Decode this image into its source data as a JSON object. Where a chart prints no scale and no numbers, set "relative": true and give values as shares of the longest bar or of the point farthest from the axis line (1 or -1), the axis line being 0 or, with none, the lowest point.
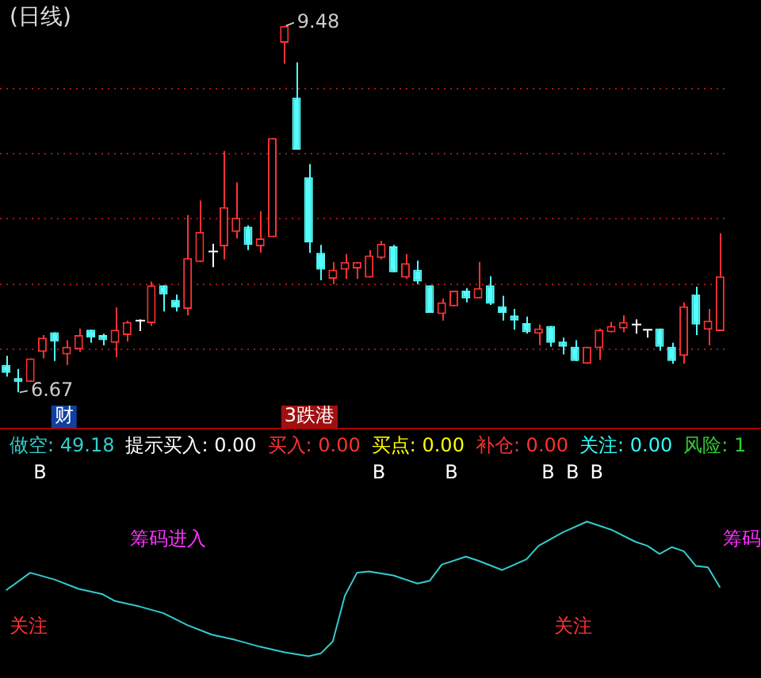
{
  "chart_data": [
    {
      "type": "candlestick",
      "title": "(日线)",
      "categories": [
        null,
        null,
        null,
        null,
        null,
        null,
        null,
        null,
        null,
        null,
        null,
        null,
        null,
        null,
        null,
        null,
        null,
        null,
        null,
        null,
        null,
        null,
        null,
        null,
        null,
        null,
        null,
        null,
        null,
        null,
        null,
        null,
        null,
        null,
        null,
        null,
        null,
        null,
        null,
        null,
        null,
        null,
        null,
        null,
        null,
        null,
        null,
        null,
        null,
        null,
        null,
        null,
        null,
        null,
        null,
        null,
        null,
        null,
        null,
        null
      ],
      "ohlc": [
        [
          6.88,
          6.95,
          6.79,
          6.82
        ],
        [
          6.78,
          6.85,
          6.67,
          6.75
        ],
        [
          6.75,
          6.93,
          6.75,
          6.93
        ],
        [
          6.98,
          7.11,
          6.93,
          7.09
        ],
        [
          7.13,
          7.13,
          6.91,
          7.06
        ],
        [
          6.96,
          7.07,
          6.88,
          7.02
        ],
        [
          7.0,
          7.16,
          6.98,
          7.11
        ],
        [
          7.15,
          7.15,
          7.05,
          7.09
        ],
        [
          7.11,
          7.12,
          7.03,
          7.07
        ],
        [
          7.05,
          7.32,
          6.94,
          7.15
        ],
        [
          7.11,
          7.22,
          7.06,
          7.21
        ],
        [
          7.22,
          7.23,
          7.14,
          7.22
        ],
        [
          7.2,
          7.52,
          7.18,
          7.49
        ],
        [
          7.49,
          7.49,
          7.29,
          7.42
        ],
        [
          7.38,
          7.42,
          7.29,
          7.32
        ],
        [
          7.31,
          8.03,
          7.26,
          7.7
        ],
        [
          7.67,
          8.14,
          7.67,
          7.9
        ],
        [
          7.75,
          7.81,
          7.63,
          7.75
        ],
        [
          7.79,
          8.52,
          7.69,
          8.09
        ],
        [
          7.9,
          8.28,
          7.85,
          8.01
        ],
        [
          7.94,
          7.95,
          7.76,
          7.8
        ],
        [
          7.79,
          8.06,
          7.74,
          7.85
        ],
        [
          7.86,
          8.62,
          7.86,
          8.62
        ],
        [
          9.35,
          9.48,
          9.19,
          9.48
        ],
        [
          8.93,
          9.2,
          8.53,
          8.53
        ],
        [
          8.32,
          8.42,
          7.74,
          7.82
        ],
        [
          7.74,
          7.8,
          7.53,
          7.61
        ],
        [
          7.54,
          7.67,
          7.5,
          7.61
        ],
        [
          7.61,
          7.73,
          7.54,
          7.67
        ],
        [
          7.62,
          7.67,
          7.54,
          7.67
        ],
        [
          7.55,
          7.76,
          7.55,
          7.72
        ],
        [
          7.7,
          7.83,
          7.69,
          7.81
        ],
        [
          7.79,
          7.8,
          7.59,
          7.59
        ],
        [
          7.55,
          7.73,
          7.54,
          7.66
        ],
        [
          7.61,
          7.68,
          7.5,
          7.52
        ],
        [
          7.49,
          7.49,
          7.28,
          7.28
        ],
        [
          7.27,
          7.39,
          7.22,
          7.36
        ],
        [
          7.33,
          7.45,
          7.33,
          7.45
        ],
        [
          7.45,
          7.47,
          7.36,
          7.39
        ],
        [
          7.39,
          7.67,
          7.39,
          7.47
        ],
        [
          7.49,
          7.56,
          7.34,
          7.35
        ],
        [
          7.33,
          7.41,
          7.22,
          7.28
        ],
        [
          7.26,
          7.31,
          7.15,
          7.22
        ],
        [
          7.2,
          7.25,
          7.12,
          7.13
        ],
        [
          7.12,
          7.19,
          7.03,
          7.16
        ],
        [
          7.18,
          7.18,
          7.02,
          7.05
        ],
        [
          7.06,
          7.09,
          6.96,
          7.02
        ],
        [
          7.02,
          7.07,
          6.91,
          6.91
        ],
        [
          6.89,
          7.02,
          6.89,
          7.02
        ],
        [
          7.01,
          7.16,
          6.92,
          7.15
        ],
        [
          7.13,
          7.21,
          7.13,
          7.18
        ],
        [
          7.16,
          7.26,
          7.13,
          7.21
        ],
        [
          7.19,
          7.23,
          7.12,
          7.19
        ],
        [
          7.15,
          7.15,
          7.09,
          7.15
        ],
        [
          7.16,
          7.16,
          6.99,
          7.02
        ],
        [
          7.02,
          7.05,
          6.89,
          6.91
        ],
        [
          6.95,
          7.36,
          6.89,
          7.33
        ],
        [
          7.42,
          7.48,
          7.11,
          7.19
        ],
        [
          7.15,
          7.31,
          7.03,
          7.22
        ],
        [
          7.14,
          7.89,
          7.14,
          7.56
        ]
      ],
      "colors": [
        "#54fcfc",
        "#54fcfc",
        "#ff3232",
        "#ff3232",
        "#54fcfc",
        "#ff3232",
        "#ff3232",
        "#54fcfc",
        "#54fcfc",
        "#ff3232",
        "#ff3232",
        "#ffffff",
        "#ff3232",
        "#54fcfc",
        "#54fcfc",
        "#ff3232",
        "#ff3232",
        "#ffffff",
        "#ff3232",
        "#ff3232",
        "#54fcfc",
        "#ff3232",
        "#ff3232",
        "#ff3232",
        "#54fcfc",
        "#54fcfc",
        "#54fcfc",
        "#ff3232",
        "#ff3232",
        "#ff3232",
        "#ff3232",
        "#ff3232",
        "#54fcfc",
        "#ff3232",
        "#54fcfc",
        "#54fcfc",
        "#ff3232",
        "#ff3232",
        "#54fcfc",
        "#ff3232",
        "#54fcfc",
        "#54fcfc",
        "#54fcfc",
        "#54fcfc",
        "#ff3232",
        "#54fcfc",
        "#54fcfc",
        "#54fcfc",
        "#ff3232",
        "#ff3232",
        "#ff3232",
        "#ff3232",
        "#ffffff",
        "#ffffff",
        "#54fcfc",
        "#54fcfc",
        "#ff3232",
        "#54fcfc",
        "#ff3232",
        "#ff3232"
      ],
      "yticks": [
        {
          "value": 7,
          "label": null
        },
        {
          "value": 7.5,
          "label": null
        },
        {
          "value": 8,
          "label": null
        },
        {
          "value": 8.5,
          "label": null
        },
        {
          "value": 9,
          "label": null
        }
      ],
      "grid": "y",
      "tick_labels": false,
      "annotations": [
        "财",
        "3跌港",
        "9.48",
        "6.67"
      ]
    },
    {
      "type": "line",
      "relative": true,
      "categories": [
        null,
        null,
        null,
        null,
        null,
        null,
        null,
        null,
        null,
        null,
        null,
        null,
        null,
        null,
        null,
        null,
        null,
        null,
        null,
        null,
        null,
        null,
        null,
        null,
        null,
        null,
        null,
        null,
        null,
        null,
        null,
        null,
        null,
        null,
        null,
        null,
        null,
        null,
        null,
        null,
        null,
        null,
        null,
        null,
        null,
        null,
        null,
        null,
        null,
        null,
        null,
        null,
        null,
        null,
        null,
        null,
        null,
        null,
        null,
        null
      ],
      "series": [
        {
          "color": "#33cccc",
          "values": [
            0.49,
            null,
            0.62,
            null,
            0.57,
            null,
            0.5,
            null,
            0.46,
            0.41,
            null,
            0.37,
            null,
            0.32,
            null,
            0.23,
            null,
            0.16,
            null,
            0.12,
            null,
            0.07,
            null,
            0.03,
            null,
            0,
            0.02,
            0.11,
            0.45,
            0.62,
            0.63,
            null,
            0.6,
            null,
            0.54,
            0.56,
            0.68,
            null,
            0.74,
            0.71,
            null,
            0.64,
            null,
            0.72,
            0.82,
            null,
            0.92,
            null,
            1,
            null,
            0.94,
            null,
            0.85,
            0.82,
            0.76,
            0.81,
            0.78,
            0.67,
            0.66,
            0.51
          ]
        }
      ],
      "annotations": [
        "做空: 49.18",
        "提示买入: 0.00",
        "买入: 0.00",
        "买点: 0.00",
        "补仓: 0.00",
        "关注: 0.00",
        "风险: 1",
        "筹码进入",
        "筹码",
        "关注",
        "关注",
        "B",
        "B",
        "B",
        "B",
        "B",
        "B"
      ]
    }
  ]
}
